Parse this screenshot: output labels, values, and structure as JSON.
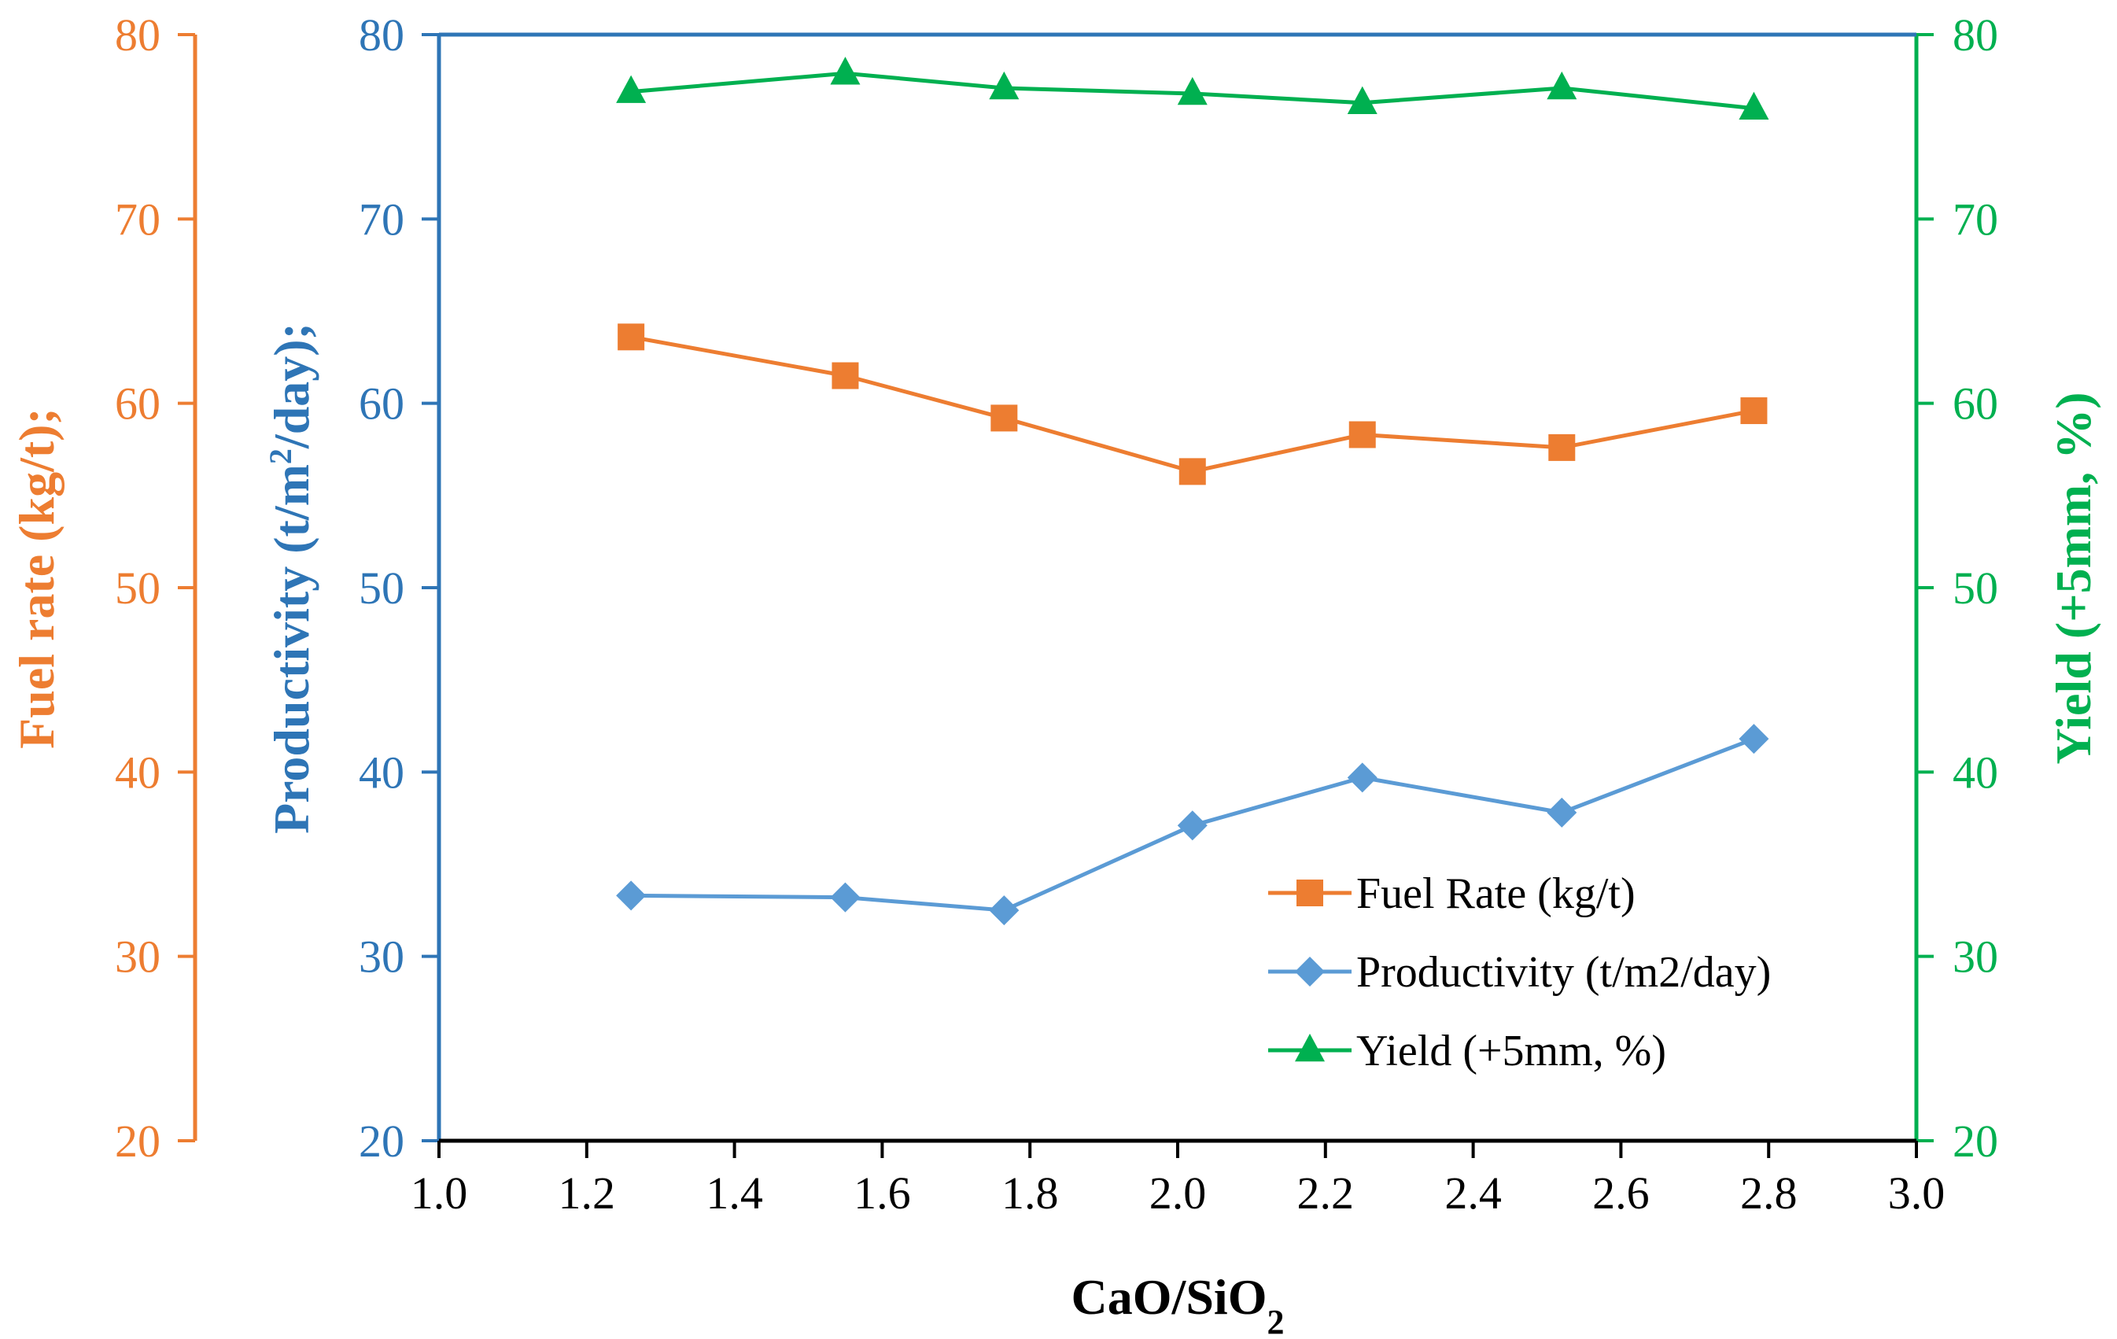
{
  "chart_data": {
    "type": "line",
    "xlabel_main": "CaO/SiO",
    "xlabel_sub": "2",
    "xlim": [
      1.0,
      3.0
    ],
    "xticks": [
      1.0,
      1.2,
      1.4,
      1.6,
      1.8,
      2.0,
      2.2,
      2.4,
      2.6,
      2.8,
      3.0
    ],
    "xtick_labels": [
      "1.0",
      "1.2",
      "1.4",
      "1.6",
      "1.8",
      "2.0",
      "2.2",
      "2.4",
      "2.6",
      "2.8",
      "3.0"
    ],
    "axes": {
      "fuel": {
        "label": "Fuel rate (kg/t);",
        "color": "#ED7D31",
        "ylim": [
          20,
          80
        ],
        "ticks": [
          "20",
          "30",
          "40",
          "50",
          "60",
          "70",
          "80"
        ]
      },
      "productivity": {
        "label_main": "Productivity  (t/m",
        "label_sup": "2",
        "label_end": "/day);",
        "color": "#2E75B6",
        "ylim": [
          20,
          80
        ],
        "ticks": [
          "20",
          "30",
          "40",
          "50",
          "60",
          "70",
          "80"
        ]
      },
      "yield": {
        "label": "Yield (+5mm, %)",
        "color": "#00B050",
        "ylim": [
          20,
          80
        ],
        "ticks": [
          "20",
          "30",
          "40",
          "50",
          "60",
          "70",
          "80"
        ]
      }
    },
    "x": [
      1.26,
      1.55,
      1.765,
      2.02,
      2.25,
      2.52,
      2.78
    ],
    "series": [
      {
        "name": "Fuel Rate (kg/t)",
        "color": "#ED7D31",
        "marker": "square",
        "values": [
          63.6,
          61.5,
          59.2,
          56.3,
          58.3,
          57.6,
          59.6
        ]
      },
      {
        "name": "Productivity  (t/m2/day)",
        "color": "#5B9BD5",
        "marker": "diamond",
        "values": [
          33.3,
          33.2,
          32.5,
          37.1,
          39.7,
          37.8,
          41.8
        ]
      },
      {
        "name": "Yield (+5mm, %)",
        "color": "#00B050",
        "marker": "triangle",
        "values": [
          76.9,
          77.9,
          77.1,
          76.8,
          76.3,
          77.1,
          76.0
        ]
      }
    ],
    "legend_position": "bottom-right"
  }
}
